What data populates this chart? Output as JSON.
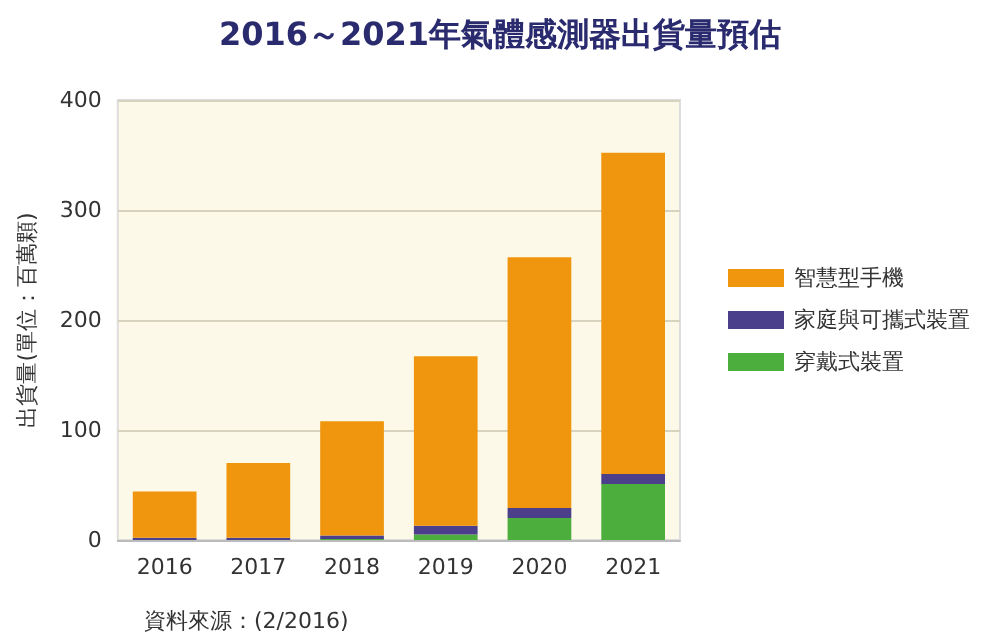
{
  "chart_data": {
    "type": "bar",
    "title": "2016～2021年氣體感測器出貨量預估",
    "ylabel": "出貨量(單位：百萬顆)",
    "categories": [
      "2016",
      "2017",
      "2018",
      "2019",
      "2020",
      "2021"
    ],
    "series": [
      {
        "name": "穿戴式裝置",
        "color": "#4cae3c",
        "values": [
          0,
          0,
          1,
          5,
          20,
          51
        ]
      },
      {
        "name": "家庭與可攜式裝置",
        "color": "#4b3f8c",
        "values": [
          2,
          2,
          3,
          8,
          9,
          9
        ]
      },
      {
        "name": "智慧型手機",
        "color": "#f0960e",
        "values": [
          42,
          68,
          104,
          154,
          228,
          292
        ]
      }
    ],
    "stacked": true,
    "ylim": [
      0,
      400
    ],
    "yticks": [
      0,
      100,
      200,
      300,
      400
    ],
    "grid": "y",
    "legend": "right",
    "annotations": [
      "資料來源：(2/2016)"
    ]
  }
}
